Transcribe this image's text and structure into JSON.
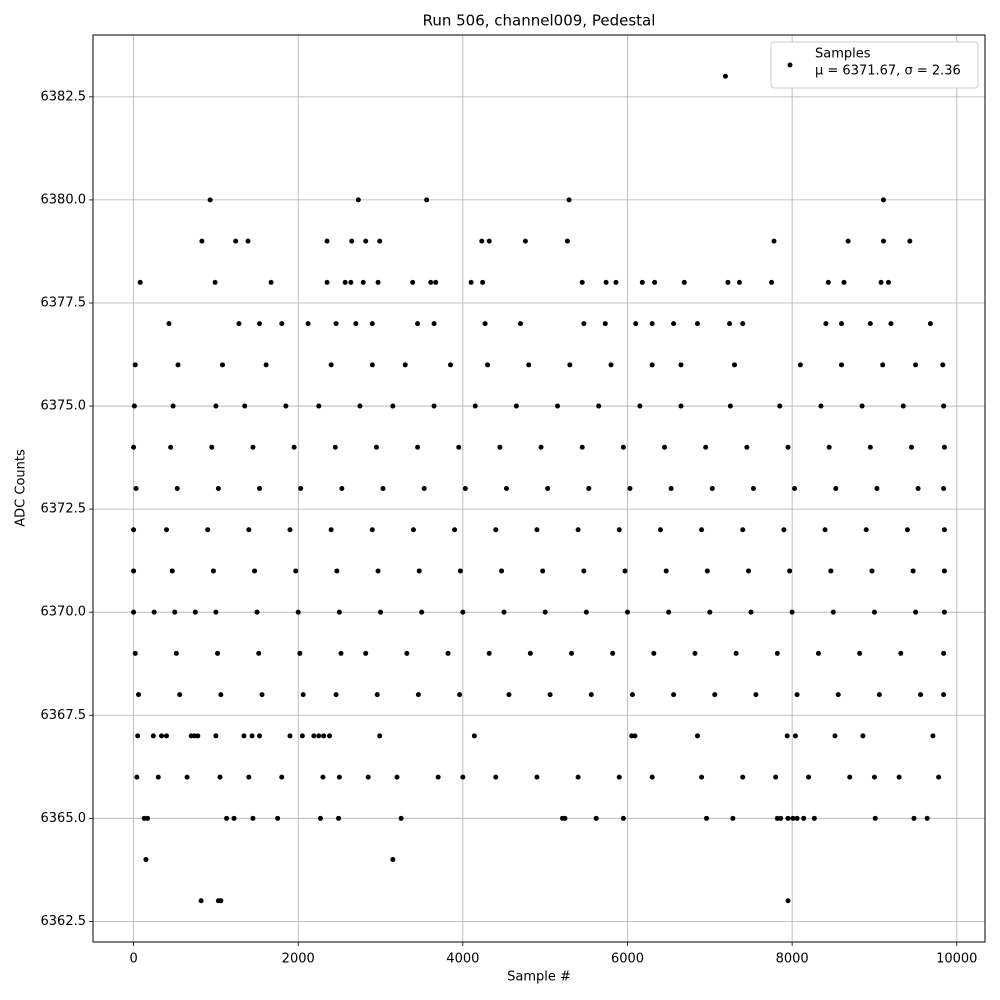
{
  "chart_data": {
    "type": "scatter",
    "title": "Run 506, channel009, Pedestal",
    "x_label": "Sample #",
    "y_label": "ADC Counts",
    "xlim": [
      -493,
      10343
    ],
    "ylim": [
      6362.0,
      6384.0
    ],
    "xticks": [
      0,
      2000,
      4000,
      6000,
      8000,
      10000
    ],
    "yticks": [
      6362.5,
      {
        "value": 6365.0,
        "label": "6365.0"
      },
      6367.5,
      {
        "value": 6370.0,
        "label": "6370.0"
      },
      6372.5,
      {
        "value": 6375.0,
        "label": "6375.0"
      },
      6377.5,
      {
        "value": 6380.0,
        "label": "6380.0"
      },
      6382.5
    ],
    "grid": true,
    "legend_position": "upper right",
    "legend_stats": "μ = 6371.67, σ = 2.36",
    "series": [
      {
        "name": "Samples",
        "color": "#000000",
        "x": [
          7190,
          930,
          2730,
          3560,
          5290,
          9110,
          830,
          1240,
          1390,
          2350,
          2650,
          2820,
          2990,
          4230,
          4320,
          4760,
          5270,
          7780,
          8680,
          9110,
          9430,
          80,
          990,
          1670,
          2350,
          2570,
          2640,
          2790,
          2970,
          3390,
          3610,
          3670,
          4100,
          4240,
          5450,
          5740,
          5860,
          6180,
          6330,
          6690,
          7220,
          7360,
          7750,
          8440,
          8630,
          9080,
          9170,
          430,
          1280,
          1530,
          1800,
          2120,
          2460,
          2700,
          2900,
          3450,
          3650,
          4270,
          4700,
          5470,
          5730,
          6100,
          6300,
          6560,
          6850,
          7240,
          7400,
          8410,
          8600,
          8950,
          9200,
          9680,
          20,
          540,
          1080,
          1610,
          2400,
          2900,
          3300,
          3850,
          4300,
          4800,
          5300,
          5800,
          6300,
          6650,
          7300,
          8100,
          8600,
          9100,
          9500,
          9830,
          10,
          480,
          1000,
          1350,
          1850,
          2250,
          2750,
          3150,
          3650,
          4150,
          4650,
          5150,
          5650,
          6150,
          6650,
          7250,
          7850,
          8350,
          8850,
          9350,
          9840,
          0,
          450,
          950,
          1450,
          1950,
          2450,
          2950,
          3450,
          3950,
          4450,
          4950,
          5450,
          5950,
          6450,
          6950,
          7450,
          7950,
          8450,
          8950,
          9450,
          9850,
          30,
          530,
          1030,
          1530,
          2030,
          2530,
          3030,
          3530,
          4030,
          4530,
          5030,
          5530,
          6030,
          6530,
          7030,
          7530,
          8030,
          8530,
          9030,
          9530,
          9840,
          0,
          400,
          900,
          1400,
          1900,
          2400,
          2900,
          3400,
          3900,
          4400,
          4900,
          5400,
          5900,
          6400,
          6900,
          7400,
          7900,
          8400,
          8900,
          9400,
          9850,
          0,
          470,
          970,
          1470,
          1970,
          2470,
          2970,
          3470,
          3970,
          4470,
          4970,
          5470,
          5970,
          6470,
          6970,
          7470,
          7970,
          8470,
          8970,
          9470,
          9850,
          0,
          250,
          500,
          750,
          1000,
          1500,
          2000,
          2500,
          3000,
          3500,
          4000,
          4500,
          5000,
          5500,
          6000,
          6500,
          7000,
          7500,
          8000,
          8500,
          9000,
          9500,
          9850,
          20,
          520,
          1020,
          1520,
          2020,
          2520,
          2820,
          3320,
          3820,
          4320,
          4820,
          5320,
          5820,
          6320,
          6820,
          7320,
          7820,
          8320,
          8820,
          9320,
          9840,
          60,
          560,
          1060,
          1560,
          2060,
          2460,
          2960,
          3460,
          3960,
          4560,
          5060,
          5560,
          6060,
          6560,
          7060,
          7560,
          8060,
          8560,
          9060,
          9560,
          9840,
          50,
          240,
          340,
          400,
          700,
          740,
          780,
          1000,
          1340,
          1440,
          1530,
          1900,
          2050,
          2190,
          2250,
          2310,
          2380,
          2990,
          4140,
          6050,
          6090,
          6850,
          7940,
          8040,
          8520,
          8860,
          9710,
          40,
          300,
          650,
          1050,
          1400,
          1800,
          2300,
          2500,
          2850,
          3200,
          3700,
          4000,
          4400,
          4900,
          5400,
          5900,
          6300,
          6900,
          7400,
          7800,
          8200,
          8700,
          9000,
          9300,
          9780,
          130,
          170,
          1130,
          1220,
          1450,
          1750,
          2270,
          2490,
          3250,
          5210,
          5240,
          5620,
          5950,
          6960,
          7280,
          7820,
          7860,
          7950,
          8010,
          8060,
          8140,
          8270,
          9010,
          9480,
          9640,
          150,
          3150,
          820,
          1030,
          1060,
          7950
        ],
        "values": [
          6383,
          6380,
          6380,
          6380,
          6380,
          6380,
          6379,
          6379,
          6379,
          6379,
          6379,
          6379,
          6379,
          6379,
          6379,
          6379,
          6379,
          6379,
          6379,
          6379,
          6379,
          6378,
          6378,
          6378,
          6378,
          6378,
          6378,
          6378,
          6378,
          6378,
          6378,
          6378,
          6378,
          6378,
          6378,
          6378,
          6378,
          6378,
          6378,
          6378,
          6378,
          6378,
          6378,
          6378,
          6378,
          6378,
          6378,
          6377,
          6377,
          6377,
          6377,
          6377,
          6377,
          6377,
          6377,
          6377,
          6377,
          6377,
          6377,
          6377,
          6377,
          6377,
          6377,
          6377,
          6377,
          6377,
          6377,
          6377,
          6377,
          6377,
          6377,
          6377,
          6376,
          6376,
          6376,
          6376,
          6376,
          6376,
          6376,
          6376,
          6376,
          6376,
          6376,
          6376,
          6376,
          6376,
          6376,
          6376,
          6376,
          6376,
          6376,
          6376,
          6375,
          6375,
          6375,
          6375,
          6375,
          6375,
          6375,
          6375,
          6375,
          6375,
          6375,
          6375,
          6375,
          6375,
          6375,
          6375,
          6375,
          6375,
          6375,
          6375,
          6375,
          6374,
          6374,
          6374,
          6374,
          6374,
          6374,
          6374,
          6374,
          6374,
          6374,
          6374,
          6374,
          6374,
          6374,
          6374,
          6374,
          6374,
          6374,
          6374,
          6374,
          6374,
          6373,
          6373,
          6373,
          6373,
          6373,
          6373,
          6373,
          6373,
          6373,
          6373,
          6373,
          6373,
          6373,
          6373,
          6373,
          6373,
          6373,
          6373,
          6373,
          6373,
          6373,
          6372,
          6372,
          6372,
          6372,
          6372,
          6372,
          6372,
          6372,
          6372,
          6372,
          6372,
          6372,
          6372,
          6372,
          6372,
          6372,
          6372,
          6372,
          6372,
          6372,
          6372,
          6371,
          6371,
          6371,
          6371,
          6371,
          6371,
          6371,
          6371,
          6371,
          6371,
          6371,
          6371,
          6371,
          6371,
          6371,
          6371,
          6371,
          6371,
          6371,
          6371,
          6371,
          6370,
          6370,
          6370,
          6370,
          6370,
          6370,
          6370,
          6370,
          6370,
          6370,
          6370,
          6370,
          6370,
          6370,
          6370,
          6370,
          6370,
          6370,
          6370,
          6370,
          6370,
          6370,
          6370,
          6369,
          6369,
          6369,
          6369,
          6369,
          6369,
          6369,
          6369,
          6369,
          6369,
          6369,
          6369,
          6369,
          6369,
          6369,
          6369,
          6369,
          6369,
          6369,
          6369,
          6369,
          6368,
          6368,
          6368,
          6368,
          6368,
          6368,
          6368,
          6368,
          6368,
          6368,
          6368,
          6368,
          6368,
          6368,
          6368,
          6368,
          6368,
          6368,
          6368,
          6368,
          6368,
          6367,
          6367,
          6367,
          6367,
          6367,
          6367,
          6367,
          6367,
          6367,
          6367,
          6367,
          6367,
          6367,
          6367,
          6367,
          6367,
          6367,
          6367,
          6367,
          6367,
          6367,
          6367,
          6367,
          6367,
          6367,
          6367,
          6367,
          6366,
          6366,
          6366,
          6366,
          6366,
          6366,
          6366,
          6366,
          6366,
          6366,
          6366,
          6366,
          6366,
          6366,
          6366,
          6366,
          6366,
          6366,
          6366,
          6366,
          6366,
          6366,
          6366,
          6366,
          6366,
          6365,
          6365,
          6365,
          6365,
          6365,
          6365,
          6365,
          6365,
          6365,
          6365,
          6365,
          6365,
          6365,
          6365,
          6365,
          6365,
          6365,
          6365,
          6365,
          6365,
          6365,
          6365,
          6365,
          6365,
          6365,
          6364,
          6364,
          6363,
          6363,
          6363,
          6363
        ]
      }
    ]
  }
}
